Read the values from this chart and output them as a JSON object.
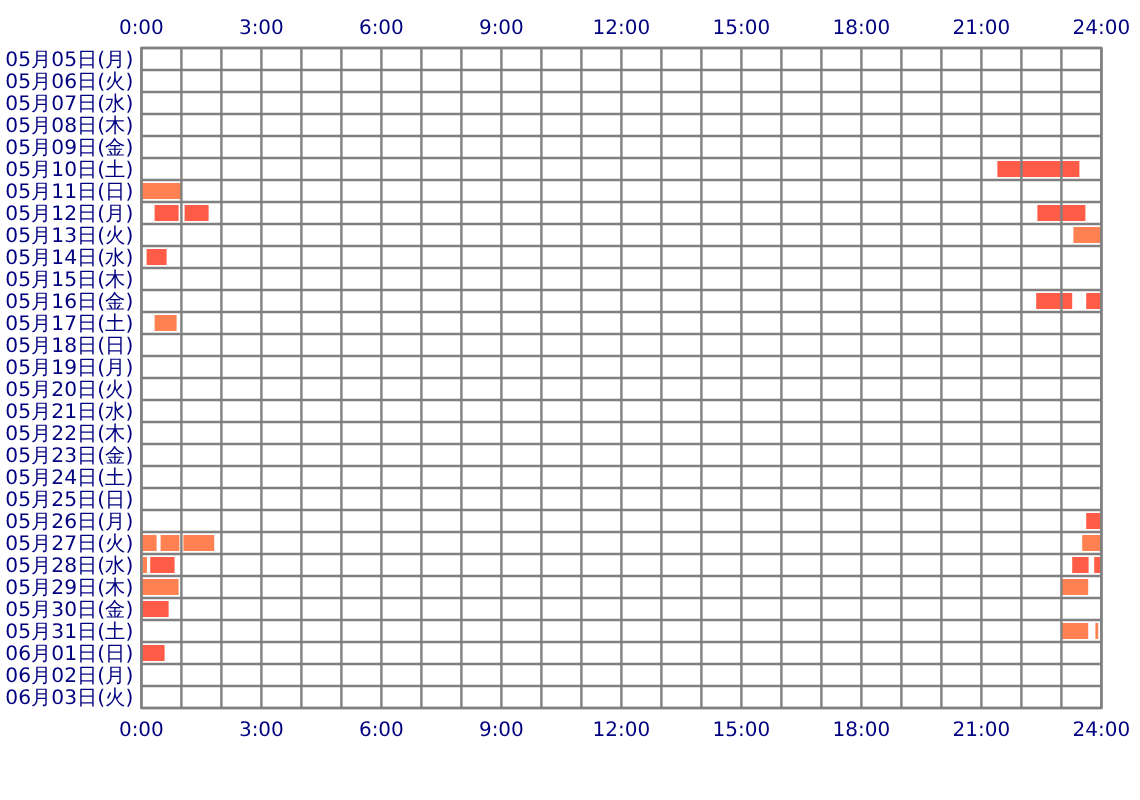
{
  "chart_data": {
    "type": "bar",
    "orientation": "horizontal",
    "grid": true,
    "categories": [
      "05月05日(月)",
      "05月06日(火)",
      "05月07日(水)",
      "05月08日(木)",
      "05月09日(金)",
      "05月10日(土)",
      "05月11日(日)",
      "05月12日(月)",
      "05月13日(火)",
      "05月14日(水)",
      "05月15日(木)",
      "05月16日(金)",
      "05月17日(土)",
      "05月18日(日)",
      "05月19日(月)",
      "05月20日(火)",
      "05月21日(水)",
      "05月22日(木)",
      "05月23日(金)",
      "05月24日(土)",
      "05月25日(日)",
      "05月26日(月)",
      "05月27日(火)",
      "05月28日(水)",
      "05月29日(木)",
      "05月30日(金)",
      "05月31日(土)",
      "06月01日(日)",
      "06月02日(月)",
      "06月03日(火)"
    ],
    "xlim": [
      0,
      24
    ],
    "xticks": [
      {
        "value": 0,
        "label": "0:00"
      },
      {
        "value": 1,
        "label": null
      },
      {
        "value": 2,
        "label": null
      },
      {
        "value": 3,
        "label": "3:00"
      },
      {
        "value": 4,
        "label": null
      },
      {
        "value": 5,
        "label": null
      },
      {
        "value": 6,
        "label": "6:00"
      },
      {
        "value": 7,
        "label": null
      },
      {
        "value": 8,
        "label": null
      },
      {
        "value": 9,
        "label": "9:00"
      },
      {
        "value": 10,
        "label": null
      },
      {
        "value": 11,
        "label": null
      },
      {
        "value": 12,
        "label": "12:00"
      },
      {
        "value": 13,
        "label": null
      },
      {
        "value": 14,
        "label": null
      },
      {
        "value": 15,
        "label": "15:00"
      },
      {
        "value": 16,
        "label": null
      },
      {
        "value": 17,
        "label": null
      },
      {
        "value": 18,
        "label": "18:00"
      },
      {
        "value": 19,
        "label": null
      },
      {
        "value": 20,
        "label": null
      },
      {
        "value": 21,
        "label": "21:00"
      },
      {
        "value": 22,
        "label": null
      },
      {
        "value": 23,
        "label": null
      },
      {
        "value": 24,
        "label": "24:00"
      }
    ],
    "x2lim": [
      0,
      24
    ],
    "x2ticks": [
      {
        "value": 0,
        "label": "0:00"
      },
      {
        "value": 1,
        "label": null
      },
      {
        "value": 2,
        "label": null
      },
      {
        "value": 3,
        "label": "3:00"
      },
      {
        "value": 4,
        "label": null
      },
      {
        "value": 5,
        "label": null
      },
      {
        "value": 6,
        "label": "6:00"
      },
      {
        "value": 7,
        "label": null
      },
      {
        "value": 8,
        "label": null
      },
      {
        "value": 9,
        "label": "9:00"
      },
      {
        "value": 10,
        "label": null
      },
      {
        "value": 11,
        "label": null
      },
      {
        "value": 12,
        "label": "12:00"
      },
      {
        "value": 13,
        "label": null
      },
      {
        "value": 14,
        "label": null
      },
      {
        "value": 15,
        "label": "15:00"
      },
      {
        "value": 16,
        "label": null
      },
      {
        "value": 17,
        "label": null
      },
      {
        "value": 18,
        "label": "18:00"
      },
      {
        "value": 19,
        "label": null
      },
      {
        "value": 20,
        "label": null
      },
      {
        "value": 21,
        "label": "21:00"
      },
      {
        "value": 22,
        "label": null
      },
      {
        "value": 23,
        "label": null
      },
      {
        "value": 24,
        "label": "24:00"
      }
    ],
    "series": [
      {
        "base": [
          null,
          null,
          null,
          null,
          null,
          21.4,
          0,
          0.33,
          23.3,
          0.13,
          null,
          22.37,
          0.33,
          null,
          null,
          null,
          null,
          null,
          null,
          null,
          null,
          23.62,
          0,
          0.04,
          0,
          0,
          23.0,
          0,
          null,
          null
        ],
        "values": [
          null,
          null,
          null,
          null,
          null,
          2.05,
          1.0,
          0.6,
          0.7,
          0.5,
          null,
          0.9,
          0.55,
          null,
          null,
          null,
          null,
          null,
          null,
          null,
          null,
          0.38,
          0.38,
          0.1,
          0.93,
          0.68,
          0.67,
          0.58,
          null,
          null
        ],
        "colors": [
          null,
          null,
          null,
          null,
          null,
          "#ff5c47",
          "#ff8050",
          "#ff5c47",
          "#ff8050",
          "#ff5c47",
          null,
          "#ff5c47",
          "#ff8050",
          null,
          null,
          null,
          null,
          null,
          null,
          null,
          null,
          "#ff5c47",
          "#ff8050",
          "#ff8050",
          "#ff8050",
          "#ff5c47",
          "#ff8050",
          "#ff5c47",
          null,
          null
        ]
      },
      {
        "base": [
          null,
          null,
          null,
          null,
          null,
          null,
          null,
          1.08,
          null,
          null,
          null,
          23.62,
          null,
          null,
          null,
          null,
          null,
          null,
          null,
          null,
          null,
          null,
          0.48,
          0.22,
          23.0,
          null,
          23.85,
          null,
          null,
          null
        ],
        "values": [
          null,
          null,
          null,
          null,
          null,
          null,
          null,
          0.6,
          null,
          null,
          null,
          0.38,
          null,
          null,
          null,
          null,
          null,
          null,
          null,
          null,
          null,
          null,
          0.47,
          0.61,
          0.67,
          null,
          0.07,
          null,
          null,
          null
        ],
        "colors": [
          null,
          null,
          null,
          null,
          null,
          null,
          null,
          "#ff5c47",
          null,
          null,
          null,
          "#ff5c47",
          null,
          null,
          null,
          null,
          null,
          null,
          null,
          null,
          null,
          null,
          "#ff8050",
          "#ff5c47",
          "#ff8050",
          null,
          "#ff8050",
          null,
          null,
          null
        ]
      },
      {
        "base": [
          null,
          null,
          null,
          null,
          null,
          null,
          null,
          22.4,
          null,
          null,
          null,
          null,
          null,
          null,
          null,
          null,
          null,
          null,
          null,
          null,
          null,
          null,
          1.05,
          23.27,
          null,
          null,
          null,
          null,
          null,
          null
        ],
        "values": [
          null,
          null,
          null,
          null,
          null,
          null,
          null,
          1.2,
          null,
          null,
          null,
          null,
          null,
          null,
          null,
          null,
          null,
          null,
          null,
          null,
          null,
          null,
          0.77,
          0.41,
          null,
          null,
          null,
          null,
          null,
          null
        ],
        "colors": [
          null,
          null,
          null,
          null,
          null,
          null,
          null,
          "#ff5c47",
          null,
          null,
          null,
          null,
          null,
          null,
          null,
          null,
          null,
          null,
          null,
          null,
          null,
          null,
          "#ff8050",
          "#ff5c47",
          null,
          null,
          null,
          null,
          null,
          null
        ]
      },
      {
        "base": [
          null,
          null,
          null,
          null,
          null,
          null,
          null,
          null,
          null,
          null,
          null,
          null,
          null,
          null,
          null,
          null,
          null,
          null,
          null,
          null,
          null,
          null,
          23.52,
          23.82,
          null,
          null,
          null,
          null,
          null,
          null
        ],
        "values": [
          null,
          null,
          null,
          null,
          null,
          null,
          null,
          null,
          null,
          null,
          null,
          null,
          null,
          null,
          null,
          null,
          null,
          null,
          null,
          null,
          null,
          null,
          0.48,
          0.18,
          null,
          null,
          null,
          null,
          null,
          null
        ],
        "colors": [
          null,
          null,
          null,
          null,
          null,
          null,
          null,
          null,
          null,
          null,
          null,
          null,
          null,
          null,
          null,
          null,
          null,
          null,
          null,
          null,
          null,
          null,
          "#ff8050",
          "#ff5c47",
          null,
          null,
          null,
          null,
          null,
          null
        ]
      }
    ]
  }
}
